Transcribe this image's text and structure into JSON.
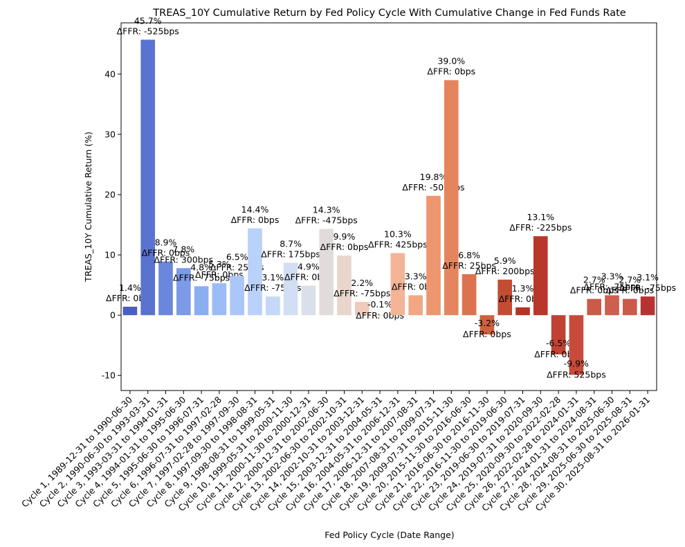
{
  "chart_data": {
    "type": "bar",
    "title": "TREAS_10Y Cumulative Return by Fed Policy Cycle With Cumulative Change in Fed Funds Rate",
    "xlabel": "Fed Policy Cycle (Date Range)",
    "ylabel": "TREAS_10Y Cumulative Return (%)",
    "ylim": [
      -12.5,
      48.5
    ],
    "yticks": [
      -10,
      0,
      10,
      20,
      30,
      40
    ],
    "legend": "none",
    "categories": [
      "Cycle 1, 1989-12-31 to 1990-06-30",
      "Cycle 2, 1990-06-30 to 1993-03-31",
      "Cycle 3, 1993-03-31 to 1994-01-31",
      "Cycle 4, 1994-01-31 to 1995-06-30",
      "Cycle 5, 1995-06-30 to 1996-07-31",
      "Cycle 6, 1996-07-31 to 1997-02-28",
      "Cycle 7, 1997-02-28 to 1997-09-30",
      "Cycle 8, 1997-09-30 to 1998-08-31",
      "Cycle 9, 1998-08-31 to 1999-05-31",
      "Cycle 10, 1999-05-31 to 2000-11-30",
      "Cycle 11, 2000-11-30 to 2000-12-31",
      "Cycle 12, 2000-12-31 to 2002-06-30",
      "Cycle 13, 2002-06-30 to 2002-10-31",
      "Cycle 14, 2002-10-31 to 2003-12-31",
      "Cycle 15, 2003-12-31 to 2004-05-31",
      "Cycle 16, 2004-05-31 to 2006-12-31",
      "Cycle 17, 2006-12-31 to 2007-08-31",
      "Cycle 18, 2007-08-31 to 2009-07-31",
      "Cycle 19, 2009-07-31 to 2015-11-30",
      "Cycle 20, 2015-11-30 to 2016-06-30",
      "Cycle 21, 2016-06-30 to 2016-11-30",
      "Cycle 22, 2016-11-30 to 2019-06-30",
      "Cycle 23, 2019-06-30 to 2019-07-31",
      "Cycle 24, 2019-07-31 to 2020-09-30",
      "Cycle 25, 2020-09-30 to 2022-02-28",
      "Cycle 26, 2022-02-28 to 2024-01-31",
      "Cycle 27, 2024-01-31 to 2024-08-31",
      "Cycle 28, 2024-08-31 to 2025-06-30",
      "Cycle 29, 2025-06-30 to 2025-08-31",
      "Cycle 30, 2025-08-31 to 2026-01-31"
    ],
    "values": [
      1.4,
      45.7,
      8.9,
      7.8,
      4.8,
      5.3,
      6.5,
      14.4,
      3.1,
      8.7,
      4.9,
      14.3,
      9.9,
      2.2,
      -0.1,
      10.3,
      3.3,
      19.8,
      39.0,
      6.8,
      -3.2,
      5.9,
      1.3,
      13.1,
      -6.5,
      -9.9,
      2.7,
      3.3,
      2.7,
      3.1
    ],
    "value_labels": [
      "1.4%",
      "45.7%",
      "8.9%",
      "7.8%",
      "4.8%",
      "5.3%",
      "6.5%",
      "14.4%",
      "3.1%",
      "8.7%",
      "4.9%",
      "14.3%",
      "9.9%",
      "2.2%",
      "-0.1%",
      "10.3%",
      "3.3%",
      "19.8%",
      "39.0%",
      "6.8%",
      "-3.2%",
      "5.9%",
      "1.3%",
      "13.1%",
      "-6.5%",
      "-9.9%",
      "2.7%",
      "3.3%",
      "2.7%",
      "3.1%"
    ],
    "ffr_labels": [
      "ΔFFR: 0bps",
      "ΔFFR: -525bps",
      "ΔFFR: 0bps",
      "ΔFFR: 300bps",
      "ΔFFR: -75bps",
      "ΔFFR: 0bps",
      "ΔFFR: 25bps",
      "ΔFFR: 0bps",
      "ΔFFR: -75bps",
      "ΔFFR: 175bps",
      "ΔFFR: 0bps",
      "ΔFFR: -475bps",
      "ΔFFR: 0bps",
      "ΔFFR: -75bps",
      "ΔFFR: 0bps",
      "ΔFFR: 425bps",
      "ΔFFR: 0bps",
      "ΔFFR: -500bps",
      "ΔFFR: 0bps",
      "ΔFFR: 25bps",
      "ΔFFR: 0bps",
      "ΔFFR: 200bps",
      "ΔFFR: 0bps",
      "ΔFFR: -225bps",
      "ΔFFR: 0bps",
      "ΔFFR: 525bps",
      "ΔFFR: 0bps",
      "ΔFFR: -75bps",
      "ΔFFR: 0bps",
      "ΔFFR: -75bps"
    ],
    "colors": [
      "#4a5fc1",
      "#5a73d0",
      "#6a87dd",
      "#7b9ae7",
      "#8baef0",
      "#9cbcf5",
      "#abc7f8",
      "#bad1f9",
      "#c6d8f7",
      "#d2def3",
      "#dadfea",
      "#e1dcdb",
      "#e8d5cc",
      "#eecbbb",
      "#f2c0a9",
      "#f3b497",
      "#f2a684",
      "#ed9670",
      "#e5855e",
      "#db744e",
      "#d0613f",
      "#c34c32",
      "#b53326",
      "#b9372a",
      "#c04232",
      "#c84a3a",
      "#cc5a48",
      "#ce5f4e",
      "#cc5a4a",
      "#b73331"
    ]
  }
}
